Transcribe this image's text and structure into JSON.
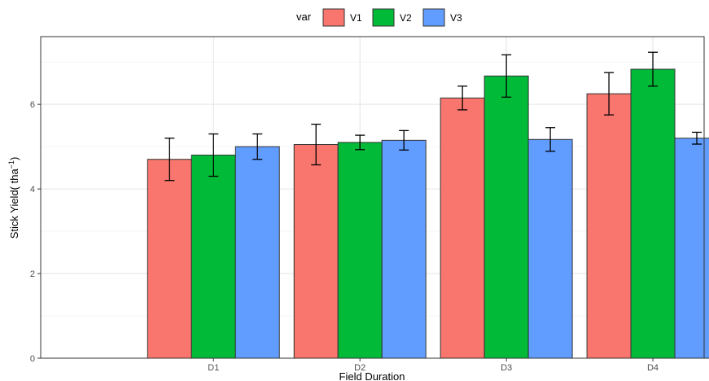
{
  "chart_data": {
    "type": "bar",
    "title": "",
    "xlabel": "Field Duration",
    "ylabel_main": "Stick Yield( tha",
    "ylabel_sup": "−1",
    "ylabel_close": ")",
    "ylim": [
      0,
      7.6
    ],
    "yticks": [
      "0",
      "2",
      "4",
      "6"
    ],
    "grid": true,
    "legend": {
      "title": "var",
      "position": "top"
    },
    "categories": [
      "D1",
      "D2",
      "D3",
      "D4"
    ],
    "series": [
      {
        "name": "V1",
        "color": "#F8766D",
        "values": [
          4.7,
          5.05,
          6.15,
          6.25
        ],
        "error": [
          0.5,
          0.48,
          0.28,
          0.5
        ]
      },
      {
        "name": "V2",
        "color": "#00BA38",
        "values": [
          4.8,
          5.1,
          6.67,
          6.83
        ],
        "error": [
          0.5,
          0.17,
          0.5,
          0.4
        ]
      },
      {
        "name": "V3",
        "color": "#619CFF",
        "values": [
          5.0,
          5.15,
          5.17,
          5.2
        ],
        "error": [
          0.3,
          0.23,
          0.28,
          0.14
        ]
      }
    ]
  }
}
